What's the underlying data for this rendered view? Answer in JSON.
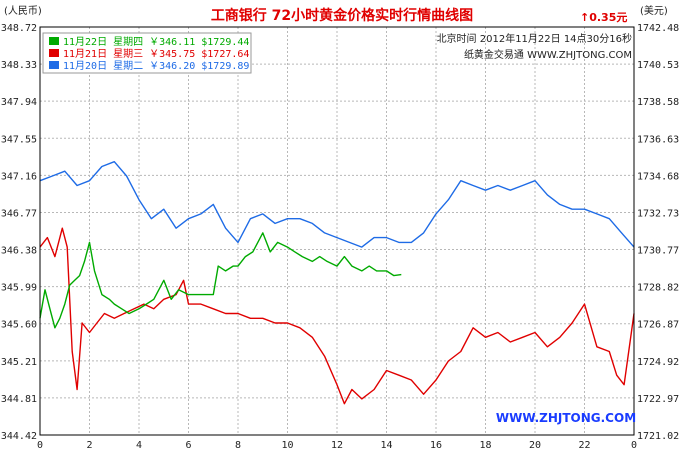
{
  "chart_data": {
    "type": "line",
    "title": "工商银行  72小时黄金价格实时行情曲线图",
    "change": "↑0.35元",
    "left_unit": "(人民币)",
    "right_unit": "(美元)",
    "time_line": "北京时间  2012年11月22日 14点30分16秒",
    "site_line": "纸黄金交易通 WWW.ZHJTONG.COM",
    "watermark": "WWW.ZHJTONG.COM",
    "x_ticks": [
      "0",
      "2",
      "4",
      "6",
      "8",
      "10",
      "12",
      "14",
      "16",
      "18",
      "20",
      "22",
      "0"
    ],
    "x_range": [
      0,
      24
    ],
    "ylim": [
      344.42,
      348.72
    ],
    "y_left_ticks": [
      "348.72",
      "348.33",
      "347.94",
      "347.55",
      "347.16",
      "346.77",
      "346.38",
      "345.99",
      "345.60",
      "345.21",
      "344.81",
      "344.42"
    ],
    "y_right_ticks": [
      "1742.48",
      "1740.53",
      "1738.58",
      "1736.63",
      "1734.68",
      "1732.73",
      "1730.77",
      "1728.82",
      "1726.87",
      "1724.92",
      "1722.97",
      "1721.02"
    ],
    "grid": true,
    "series": [
      {
        "name": "11月22日 星期四 ￥346.11 $1729.44",
        "color": "#00aa00",
        "x": [
          0,
          0.2,
          0.4,
          0.6,
          0.8,
          1.0,
          1.2,
          1.4,
          1.6,
          1.8,
          2.0,
          2.2,
          2.5,
          2.8,
          3.0,
          3.3,
          3.6,
          4.0,
          4.3,
          4.6,
          5.0,
          5.3,
          5.6,
          6.0,
          6.5,
          7.0,
          7.2,
          7.5,
          7.8,
          8.0,
          8.3,
          8.6,
          9.0,
          9.3,
          9.6,
          10.0,
          10.3,
          10.6,
          11.0,
          11.3,
          11.6,
          12.0,
          12.3,
          12.6,
          13.0,
          13.3,
          13.6,
          14.0,
          14.3,
          14.6
        ],
        "y": [
          345.65,
          345.95,
          345.75,
          345.55,
          345.65,
          345.8,
          346.0,
          346.05,
          346.1,
          346.25,
          346.45,
          346.15,
          345.9,
          345.85,
          345.8,
          345.75,
          345.7,
          345.75,
          345.8,
          345.85,
          346.05,
          345.85,
          345.95,
          345.9,
          345.9,
          345.9,
          346.2,
          346.15,
          346.2,
          346.2,
          346.3,
          346.35,
          346.55,
          346.35,
          346.45,
          346.4,
          346.35,
          346.3,
          346.25,
          346.3,
          346.25,
          346.2,
          346.3,
          346.2,
          346.15,
          346.2,
          346.15,
          346.15,
          346.1,
          346.11
        ]
      },
      {
        "name": "11月21日 星期三 ￥345.75 $1727.64",
        "color": "#e00000",
        "x": [
          0,
          0.3,
          0.6,
          0.9,
          1.1,
          1.3,
          1.5,
          1.7,
          2.0,
          2.3,
          2.6,
          3.0,
          3.4,
          3.8,
          4.2,
          4.6,
          5.0,
          5.5,
          5.8,
          6.0,
          6.5,
          7.0,
          7.5,
          8.0,
          8.5,
          9.0,
          9.5,
          10.0,
          10.5,
          11.0,
          11.5,
          12.0,
          12.3,
          12.6,
          13.0,
          13.5,
          14.0,
          14.5,
          15.0,
          15.5,
          16.0,
          16.5,
          17.0,
          17.5,
          18.0,
          18.5,
          19.0,
          19.5,
          20.0,
          20.5,
          21.0,
          21.5,
          22.0,
          22.5,
          23.0,
          23.3,
          23.6,
          24.0
        ],
        "y": [
          346.4,
          346.5,
          346.3,
          346.6,
          346.4,
          345.3,
          344.9,
          345.6,
          345.5,
          345.6,
          345.7,
          345.65,
          345.7,
          345.75,
          345.8,
          345.75,
          345.85,
          345.9,
          346.05,
          345.8,
          345.8,
          345.75,
          345.7,
          345.7,
          345.65,
          345.65,
          345.6,
          345.6,
          345.55,
          345.45,
          345.25,
          344.95,
          344.75,
          344.9,
          344.8,
          344.9,
          345.1,
          345.05,
          345.0,
          344.85,
          345.0,
          345.2,
          345.3,
          345.55,
          345.45,
          345.5,
          345.4,
          345.45,
          345.5,
          345.35,
          345.45,
          345.6,
          345.8,
          345.35,
          345.3,
          345.05,
          344.95,
          345.7
        ]
      },
      {
        "name": "11月20日 星期二 ￥346.20 $1729.89",
        "color": "#1e6be6",
        "x": [
          0,
          0.5,
          1.0,
          1.5,
          2.0,
          2.5,
          3.0,
          3.5,
          4.0,
          4.5,
          5.0,
          5.5,
          6.0,
          6.5,
          7.0,
          7.5,
          8.0,
          8.5,
          9.0,
          9.5,
          10.0,
          10.5,
          11.0,
          11.5,
          12.0,
          12.5,
          13.0,
          13.5,
          14.0,
          14.5,
          15.0,
          15.5,
          16.0,
          16.5,
          17.0,
          17.5,
          18.0,
          18.5,
          19.0,
          19.5,
          20.0,
          20.5,
          21.0,
          21.5,
          22.0,
          22.5,
          23.0,
          23.5,
          24.0
        ],
        "y": [
          347.1,
          347.15,
          347.2,
          347.05,
          347.1,
          347.25,
          347.3,
          347.15,
          346.9,
          346.7,
          346.8,
          346.6,
          346.7,
          346.75,
          346.85,
          346.6,
          346.45,
          346.7,
          346.75,
          346.65,
          346.7,
          346.7,
          346.65,
          346.55,
          346.5,
          346.45,
          346.4,
          346.5,
          346.5,
          346.45,
          346.45,
          346.55,
          346.75,
          346.9,
          347.1,
          347.05,
          347.0,
          347.05,
          347.0,
          347.05,
          347.1,
          346.95,
          346.85,
          346.8,
          346.8,
          346.75,
          346.7,
          346.55,
          346.4
        ]
      }
    ]
  }
}
